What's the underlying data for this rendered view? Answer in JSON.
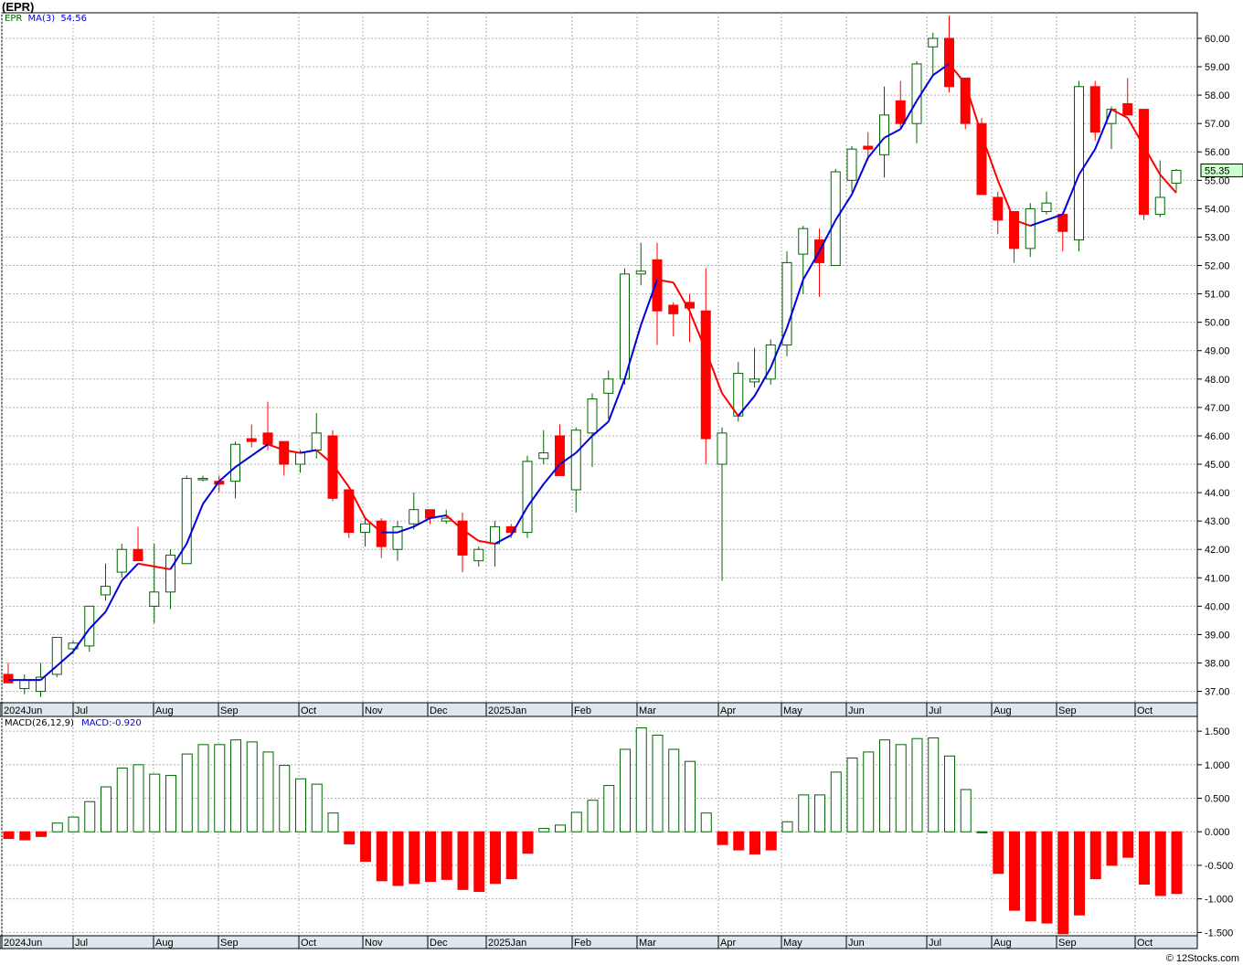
{
  "header": {
    "title": "(EPR)",
    "watermark": "© 12Stocks.com"
  },
  "price_panel": {
    "legend_symbol": "EPR",
    "legend_ma_label": "MA(3)",
    "legend_ma_value": "54.56",
    "last_price_label": "55.35"
  },
  "macd_panel": {
    "legend_label": "MACD(26,12,9)",
    "legend_value": "MACD:-0.920"
  },
  "colors": {
    "up": "#006400",
    "down": "#ff0000",
    "ma_up": "#0000dd",
    "ma_down": "#ff0000",
    "axis_band": "#dde7ee",
    "last_price_bg": "#ccffcc"
  },
  "chart_data": [
    {
      "type": "candlestick",
      "title": "(EPR)",
      "x_tick_labels": [
        "2024Jun",
        "Jul",
        "Aug",
        "Sep",
        "Oct",
        "Nov",
        "Dec",
        "2025Jan",
        "Feb",
        "Mar",
        "Apr",
        "May",
        "Jun",
        "Jul",
        "Aug",
        "Sep",
        "Oct"
      ],
      "y_tick_labels": [
        "37.00",
        "38.00",
        "39.00",
        "40.00",
        "41.00",
        "42.00",
        "43.00",
        "44.00",
        "45.00",
        "46.00",
        "47.00",
        "48.00",
        "49.00",
        "50.00",
        "51.00",
        "52.00",
        "53.00",
        "54.00",
        "55.00",
        "56.00",
        "57.00",
        "58.00",
        "59.00",
        "60.00"
      ],
      "ylim": [
        36.6,
        60.9
      ],
      "ma_label": "MA(3)",
      "ma_last": 54.56,
      "last_close": 55.35,
      "candles": [
        {
          "o": 37.6,
          "h": 38.0,
          "l": 37.3,
          "c": 37.3
        },
        {
          "o": 37.1,
          "h": 37.6,
          "l": 36.9,
          "c": 37.4
        },
        {
          "o": 37.0,
          "h": 38.0,
          "l": 36.8,
          "c": 37.5
        },
        {
          "o": 37.6,
          "h": 38.9,
          "l": 37.5,
          "c": 38.9
        },
        {
          "o": 38.5,
          "h": 38.8,
          "l": 38.3,
          "c": 38.7
        },
        {
          "o": 38.6,
          "h": 40.0,
          "l": 38.4,
          "c": 40.0
        },
        {
          "o": 40.4,
          "h": 41.5,
          "l": 40.2,
          "c": 40.7
        },
        {
          "o": 41.2,
          "h": 42.2,
          "l": 41.0,
          "c": 42.0
        },
        {
          "o": 42.0,
          "h": 42.8,
          "l": 41.6,
          "c": 41.6
        },
        {
          "o": 40.0,
          "h": 42.2,
          "l": 39.4,
          "c": 40.5
        },
        {
          "o": 40.5,
          "h": 42.0,
          "l": 39.9,
          "c": 41.8
        },
        {
          "o": 41.5,
          "h": 44.6,
          "l": 41.5,
          "c": 44.5
        },
        {
          "o": 44.5,
          "h": 44.6,
          "l": 44.4,
          "c": 44.5
        },
        {
          "o": 44.4,
          "h": 44.6,
          "l": 44.0,
          "c": 44.3
        },
        {
          "o": 44.4,
          "h": 45.8,
          "l": 43.8,
          "c": 45.7
        },
        {
          "o": 45.9,
          "h": 46.4,
          "l": 45.6,
          "c": 45.8
        },
        {
          "o": 46.1,
          "h": 47.2,
          "l": 45.5,
          "c": 45.7
        },
        {
          "o": 45.8,
          "h": 45.8,
          "l": 44.6,
          "c": 45.0
        },
        {
          "o": 45.0,
          "h": 45.5,
          "l": 44.7,
          "c": 45.4
        },
        {
          "o": 45.5,
          "h": 46.8,
          "l": 45.2,
          "c": 46.1
        },
        {
          "o": 46.0,
          "h": 46.2,
          "l": 43.7,
          "c": 43.8
        },
        {
          "o": 44.1,
          "h": 44.1,
          "l": 42.4,
          "c": 42.6
        },
        {
          "o": 42.6,
          "h": 43.1,
          "l": 42.1,
          "c": 42.9
        },
        {
          "o": 43.0,
          "h": 43.1,
          "l": 41.7,
          "c": 42.1
        },
        {
          "o": 42.0,
          "h": 43.0,
          "l": 41.6,
          "c": 42.8
        },
        {
          "o": 42.9,
          "h": 44.0,
          "l": 42.7,
          "c": 43.4
        },
        {
          "o": 43.4,
          "h": 43.4,
          "l": 42.9,
          "c": 43.1
        },
        {
          "o": 43.0,
          "h": 43.4,
          "l": 42.9,
          "c": 43.1
        },
        {
          "o": 43.0,
          "h": 43.3,
          "l": 41.2,
          "c": 41.8
        },
        {
          "o": 41.6,
          "h": 42.1,
          "l": 41.4,
          "c": 42.0
        },
        {
          "o": 42.2,
          "h": 43.0,
          "l": 41.4,
          "c": 42.8
        },
        {
          "o": 42.8,
          "h": 42.9,
          "l": 42.4,
          "c": 42.6
        },
        {
          "o": 42.6,
          "h": 45.3,
          "l": 42.4,
          "c": 45.1
        },
        {
          "o": 45.2,
          "h": 46.2,
          "l": 45.0,
          "c": 45.4
        },
        {
          "o": 46.0,
          "h": 46.4,
          "l": 44.6,
          "c": 44.6
        },
        {
          "o": 44.1,
          "h": 46.3,
          "l": 43.3,
          "c": 46.2
        },
        {
          "o": 46.1,
          "h": 47.5,
          "l": 44.9,
          "c": 47.3
        },
        {
          "o": 47.5,
          "h": 48.3,
          "l": 46.6,
          "c": 48.0
        },
        {
          "o": 48.0,
          "h": 51.9,
          "l": 47.8,
          "c": 51.7
        },
        {
          "o": 51.7,
          "h": 52.8,
          "l": 51.3,
          "c": 51.8
        },
        {
          "o": 52.2,
          "h": 52.8,
          "l": 49.2,
          "c": 50.4
        },
        {
          "o": 50.6,
          "h": 50.7,
          "l": 49.5,
          "c": 50.3
        },
        {
          "o": 50.7,
          "h": 51.0,
          "l": 49.3,
          "c": 50.5
        },
        {
          "o": 50.4,
          "h": 51.9,
          "l": 45.0,
          "c": 45.9
        },
        {
          "o": 45.0,
          "h": 46.3,
          "l": 40.9,
          "c": 46.1
        },
        {
          "o": 46.7,
          "h": 48.6,
          "l": 46.5,
          "c": 48.2
        },
        {
          "o": 47.9,
          "h": 49.1,
          "l": 47.7,
          "c": 48.0
        },
        {
          "o": 48.0,
          "h": 49.4,
          "l": 47.8,
          "c": 49.2
        },
        {
          "o": 49.2,
          "h": 52.5,
          "l": 48.8,
          "c": 52.1
        },
        {
          "o": 52.4,
          "h": 53.4,
          "l": 51.0,
          "c": 53.3
        },
        {
          "o": 52.9,
          "h": 53.3,
          "l": 50.9,
          "c": 52.1
        },
        {
          "o": 52.0,
          "h": 55.4,
          "l": 52.0,
          "c": 55.3
        },
        {
          "o": 55.0,
          "h": 56.2,
          "l": 54.6,
          "c": 56.1
        },
        {
          "o": 56.2,
          "h": 56.7,
          "l": 55.7,
          "c": 56.1
        },
        {
          "o": 55.9,
          "h": 58.3,
          "l": 55.1,
          "c": 57.3
        },
        {
          "o": 57.8,
          "h": 58.5,
          "l": 56.8,
          "c": 57.0
        },
        {
          "o": 57.0,
          "h": 59.2,
          "l": 56.3,
          "c": 59.1
        },
        {
          "o": 59.7,
          "h": 60.2,
          "l": 58.7,
          "c": 60.0
        },
        {
          "o": 60.0,
          "h": 60.8,
          "l": 58.1,
          "c": 58.3
        },
        {
          "o": 58.6,
          "h": 58.6,
          "l": 56.8,
          "c": 57.0
        },
        {
          "o": 57.0,
          "h": 57.2,
          "l": 54.7,
          "c": 54.5
        },
        {
          "o": 54.4,
          "h": 54.6,
          "l": 53.1,
          "c": 53.6
        },
        {
          "o": 53.9,
          "h": 53.9,
          "l": 52.1,
          "c": 52.6
        },
        {
          "o": 52.6,
          "h": 54.2,
          "l": 52.3,
          "c": 54.0
        },
        {
          "o": 53.9,
          "h": 54.6,
          "l": 53.8,
          "c": 54.2
        },
        {
          "o": 53.8,
          "h": 53.9,
          "l": 52.5,
          "c": 53.2
        },
        {
          "o": 52.9,
          "h": 58.5,
          "l": 52.5,
          "c": 58.3
        },
        {
          "o": 58.3,
          "h": 58.5,
          "l": 56.4,
          "c": 56.7
        },
        {
          "o": 57.0,
          "h": 57.6,
          "l": 56.1,
          "c": 57.5
        },
        {
          "o": 57.7,
          "h": 58.6,
          "l": 57.3,
          "c": 57.3
        },
        {
          "o": 57.5,
          "h": 57.5,
          "l": 53.6,
          "c": 53.8
        },
        {
          "o": 53.8,
          "h": 55.7,
          "l": 53.7,
          "c": 54.4
        },
        {
          "o": 54.9,
          "h": 55.4,
          "l": 54.6,
          "c": 55.35
        }
      ],
      "ma": [
        37.4,
        37.4,
        37.4,
        37.9,
        38.4,
        39.2,
        39.8,
        40.9,
        41.5,
        41.4,
        41.3,
        42.2,
        43.6,
        44.4,
        44.9,
        45.3,
        45.7,
        45.5,
        45.4,
        45.5,
        45.0,
        44.2,
        43.1,
        42.6,
        42.6,
        42.8,
        43.1,
        43.2,
        42.7,
        42.3,
        42.2,
        42.5,
        43.5,
        44.3,
        45.0,
        45.4,
        46.0,
        46.5,
        48.0,
        49.9,
        51.5,
        51.4,
        50.4,
        49.0,
        47.5,
        46.7,
        47.4,
        48.4,
        49.8,
        51.5,
        52.5,
        53.6,
        54.5,
        55.8,
        56.5,
        56.8,
        57.8,
        58.7,
        59.1,
        58.4,
        56.6,
        55.0,
        53.6,
        53.4,
        53.6,
        53.8,
        55.2,
        56.1,
        57.5,
        57.2,
        56.2,
        55.2,
        54.56
      ]
    },
    {
      "type": "bar",
      "title": "MACD(26,12,9)",
      "legend_value": "MACD:-0.920",
      "y_tick_labels": [
        "-1.500",
        "-1.000",
        "-0.500",
        "0.000",
        "0.500",
        "1.000",
        "1.500"
      ],
      "ylim": [
        -1.55,
        1.72
      ],
      "x_tick_labels": [
        "2024Jun",
        "Jul",
        "Aug",
        "Sep",
        "Oct",
        "Nov",
        "Dec",
        "2025Jan",
        "Feb",
        "Mar",
        "Apr",
        "May",
        "Jun",
        "Jul",
        "Aug",
        "Sep",
        "Oct"
      ],
      "values": [
        -0.1,
        -0.12,
        -0.07,
        0.13,
        0.22,
        0.45,
        0.67,
        0.95,
        1.0,
        0.86,
        0.84,
        1.16,
        1.3,
        1.3,
        1.37,
        1.34,
        1.19,
        0.99,
        0.79,
        0.71,
        0.28,
        -0.18,
        -0.44,
        -0.73,
        -0.8,
        -0.77,
        -0.74,
        -0.71,
        -0.86,
        -0.89,
        -0.77,
        -0.7,
        -0.32,
        0.05,
        0.1,
        0.29,
        0.47,
        0.69,
        1.23,
        1.55,
        1.44,
        1.23,
        1.05,
        0.28,
        -0.19,
        -0.27,
        -0.33,
        -0.27,
        0.15,
        0.55,
        0.55,
        0.89,
        1.1,
        1.19,
        1.37,
        1.3,
        1.39,
        1.4,
        1.13,
        0.63,
        0.0,
        -0.62,
        -1.17,
        -1.33,
        -1.36,
        -1.52,
        -1.24,
        -0.7,
        -0.5,
        -0.38,
        -0.78,
        -0.95,
        -0.92
      ]
    }
  ]
}
